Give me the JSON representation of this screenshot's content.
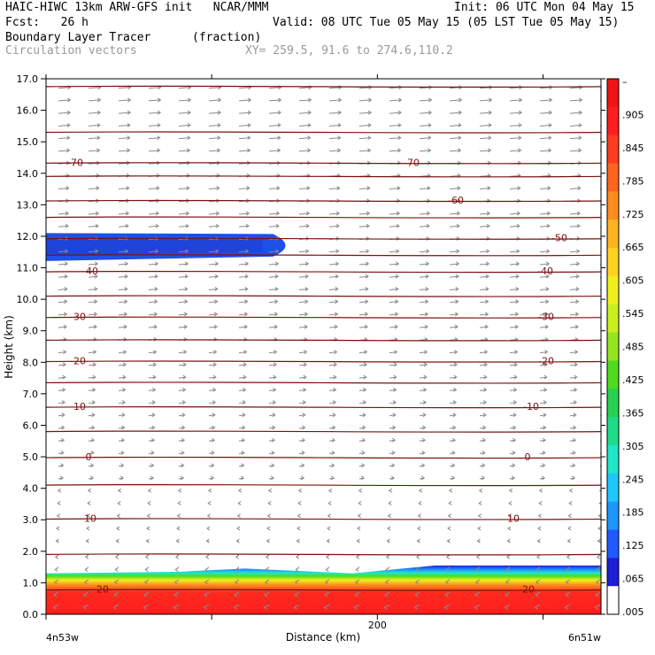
{
  "header": {
    "model_line": "HAIC-HIWC 13km ARW-GFS init   NCAR/MMM",
    "init_line": "Init: 06 UTC Mon 04 May 15",
    "fcst_line": "Fcst:   26 h",
    "valid_line": "Valid: 08 UTC Tue 05 May 15 (05 LST Tue 05 May 15)",
    "field_line": "Boundary Layer Tracer",
    "field_units": "(fraction)",
    "vector_line": "Circulation vectors",
    "xy_line": "XY= 259.5, 91.6 to 274.6,110.2"
  },
  "chart_data": {
    "type": "heatmap",
    "xlabel": "Distance (km)",
    "ylabel": "Height (km)",
    "xlim": [
      0,
      335
    ],
    "ylim": [
      0,
      17
    ],
    "x_ticks": [
      0,
      100,
      200,
      300
    ],
    "x_tick_labels": [
      "",
      "",
      "200",
      ""
    ],
    "x_endpoint_labels": [
      "4n53w",
      "6n51w"
    ],
    "y_ticks": [
      0.0,
      1.0,
      2.0,
      3.0,
      4.0,
      5.0,
      6.0,
      7.0,
      8.0,
      9.0,
      10.0,
      11.0,
      12.0,
      13.0,
      14.0,
      15.0,
      16.0,
      17.0
    ],
    "y_tick_labels": [
      "0.0",
      "1.0",
      "2.0",
      "3.0",
      "4.0",
      "5.0",
      "6.0",
      "7.0",
      "8.0",
      "9.0",
      "10.0",
      "11.0",
      "12.0",
      "13.0",
      "14.0",
      "15.0",
      "16.0",
      "17.0"
    ],
    "colorbar": {
      "labels": [
        ".005",
        ".065",
        ".125",
        ".185",
        ".245",
        ".305",
        ".365",
        ".425",
        ".485",
        ".545",
        ".605",
        ".665",
        ".725",
        ".785",
        ".845",
        ".905",
        "–"
      ],
      "colors": [
        "#ffffff",
        "#1e1ed6",
        "#1e5aff",
        "#1e96ff",
        "#1ec8ff",
        "#1ee6c8",
        "#1edc8c",
        "#28d250",
        "#50dc1e",
        "#96e61e",
        "#c8f01e",
        "#f0f01e",
        "#ffd21e",
        "#ffb41e",
        "#ff8c1e",
        "#ff641e",
        "#ff3c1e",
        "#ff1e1e",
        "#f01414"
      ]
    },
    "tracer_regions": [
      {
        "name": "upper-level plume",
        "x_range": [
          0,
          152
        ],
        "height_range": [
          11.3,
          12.1
        ],
        "value": 0.06
      },
      {
        "name": "boundary layer",
        "x_range": [
          0,
          335
        ],
        "height_range": [
          0.0,
          1.55
        ],
        "surface_value": 1.0
      }
    ],
    "temperature_contours": [
      {
        "label": "-70",
        "height": 14.35
      },
      {
        "label": "-60",
        "height": 13.15
      },
      {
        "label": "-50",
        "height": 11.95
      },
      {
        "label": "-40",
        "height": 10.9
      },
      {
        "label": "-30",
        "height": 9.45
      },
      {
        "label": "-20",
        "height": 8.05
      },
      {
        "label": "-10",
        "height": 6.6
      },
      {
        "label": "0",
        "height": 5.0
      },
      {
        "label": "10",
        "height": 3.05
      },
      {
        "label": "20",
        "height": 0.8
      }
    ],
    "vector_flow": "westerly aloft, weak easterly near surface"
  }
}
